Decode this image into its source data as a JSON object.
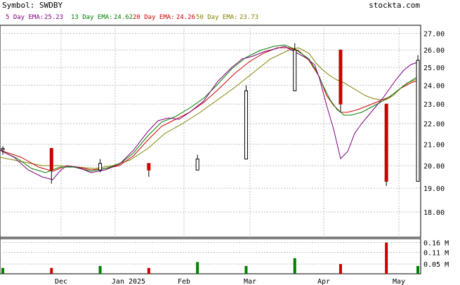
{
  "header": {
    "symbol_label": "Symbol: SWDBY",
    "brand": "stockta.com"
  },
  "legend": [
    {
      "label": "5 Day EMA:",
      "value": "25.23",
      "color": "#800080"
    },
    {
      "label": "13 Day EMA:",
      "value": "24.62",
      "color": "#008000"
    },
    {
      "label": "20 Day EMA:",
      "value": "24.26",
      "color": "#cc0000"
    },
    {
      "label": "50 Day EMA:",
      "value": "23.73",
      "color": "#808000"
    }
  ],
  "colors": {
    "up": "#008000",
    "down": "#cc0000",
    "grid": "#c0c0c0",
    "axis": "#000000",
    "ema5": "#800080",
    "ema13": "#008000",
    "ema20": "#cc0000",
    "ema50": "#808000"
  },
  "chart_data": [
    {
      "type": "candlestick",
      "title": "Symbol: SWDBY",
      "x_labels": [
        "Dec",
        "Jan 2025",
        "Feb",
        "Mar",
        "Apr",
        "May"
      ],
      "y_ticks": [
        "27.00",
        "26.00",
        "25.00",
        "24.00",
        "23.00",
        "22.00",
        "21.00",
        "20.00",
        "19.00",
        "18.00"
      ],
      "ylim": [
        17.0,
        27.5
      ],
      "log_scale": true,
      "grid": true,
      "series": [
        {
          "name": "5 Day EMA",
          "last": 25.23
        },
        {
          "name": "13 Day EMA",
          "last": 24.62
        },
        {
          "name": "20 Day EMA",
          "last": 24.26
        },
        {
          "name": "50 Day EMA",
          "last": 23.73
        }
      ],
      "x_index": [
        0,
        17,
        34,
        51,
        68,
        85,
        102,
        118,
        134,
        145
      ],
      "close": [
        20.8,
        19.8,
        20.1,
        19.8,
        20.3,
        23.7,
        26.0,
        23.0,
        19.3,
        25.4
      ],
      "high_approx": [
        20.9,
        20.0,
        20.3,
        20.0,
        20.5,
        24.0,
        26.4,
        25.9,
        21.0,
        25.7
      ],
      "low_approx": [
        20.5,
        19.2,
        19.7,
        19.5,
        20.1,
        23.4,
        25.2,
        22.6,
        19.1,
        25.0
      ]
    },
    {
      "type": "bar",
      "title": "",
      "y_ticks": [
        "0.16 M",
        "0.11 M",
        "0.05 M"
      ],
      "ylim": [
        0,
        0.18
      ],
      "unit": "M",
      "x_index": [
        0,
        17,
        34,
        51,
        68,
        85,
        102,
        118,
        134,
        145
      ],
      "values": [
        0.03,
        0.03,
        0.04,
        0.03,
        0.06,
        0.04,
        0.08,
        0.05,
        0.16,
        0.04
      ]
    }
  ]
}
